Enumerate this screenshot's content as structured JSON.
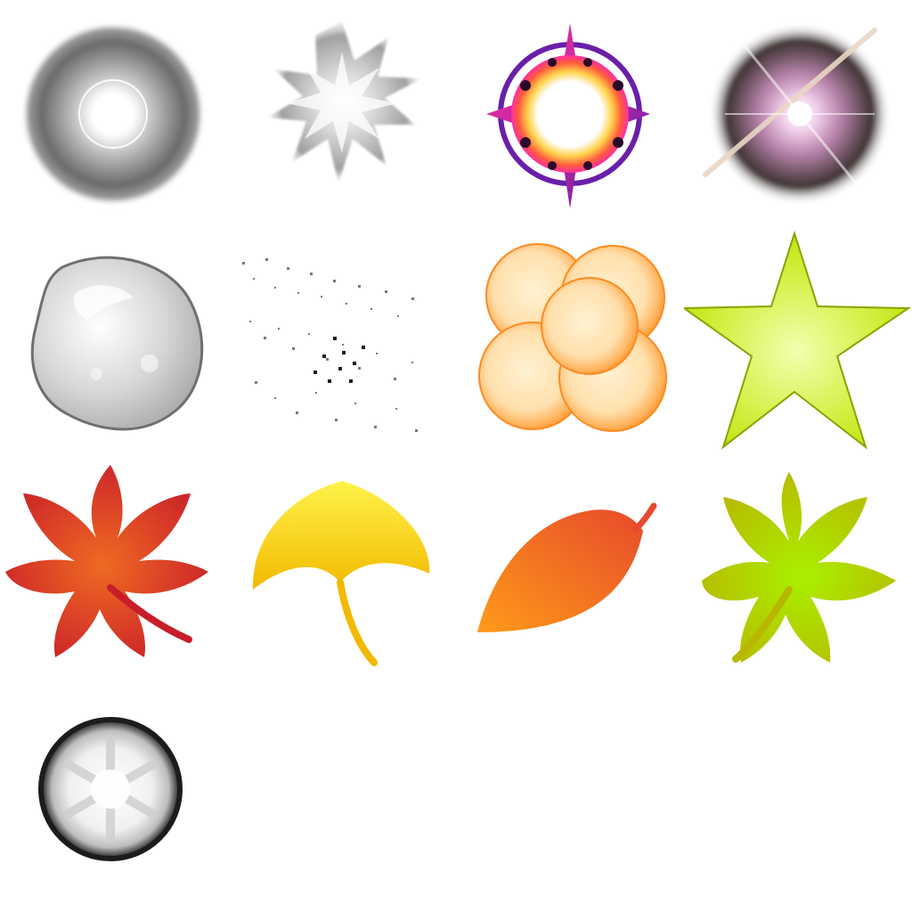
{
  "sprites": [
    {
      "icon": "soft-glow-orb-icon",
      "colors": [
        "#ffffff",
        "#9a9a9a",
        "#4a4a4a"
      ]
    },
    {
      "icon": "smoke-burst-icon",
      "colors": [
        "#ffffff",
        "#bdbdbd",
        "#6e6e6e"
      ]
    },
    {
      "icon": "magic-star-burst-icon",
      "colors": [
        "#ffffff",
        "#ffd24a",
        "#ff2fa0",
        "#6a1fa8"
      ]
    },
    {
      "icon": "lens-flare-orb-icon",
      "colors": [
        "#ffffff",
        "#e7a9d8",
        "#3f3434"
      ]
    },
    {
      "icon": "water-blob-icon",
      "colors": [
        "#f4f4f4",
        "#b7b7b7",
        "#6f6f6f"
      ]
    },
    {
      "icon": "dust-particles-icon",
      "colors": [
        "#7a7a7a",
        "#1f1f1f"
      ]
    },
    {
      "icon": "orange-bubble-cluster-icon",
      "colors": [
        "#fff2d2",
        "#ffc27a",
        "#ff8a1e"
      ]
    },
    {
      "icon": "lime-star-icon",
      "colors": [
        "#f3ffb0",
        "#c6e619",
        "#7f9a00"
      ]
    },
    {
      "icon": "red-maple-leaf-icon",
      "colors": [
        "#ef6a22",
        "#c81e2a"
      ]
    },
    {
      "icon": "ginkgo-leaf-icon",
      "colors": [
        "#fff34a",
        "#f2b900"
      ]
    },
    {
      "icon": "orange-leaf-icon",
      "colors": [
        "#ff9a19",
        "#e64a2b"
      ]
    },
    {
      "icon": "green-maple-leaf-icon",
      "colors": [
        "#aaf000",
        "#b8b700"
      ]
    },
    {
      "icon": "snow-orb-icon",
      "colors": [
        "#ffffff",
        "#bdbdbd",
        "#1c1c1c"
      ]
    }
  ]
}
